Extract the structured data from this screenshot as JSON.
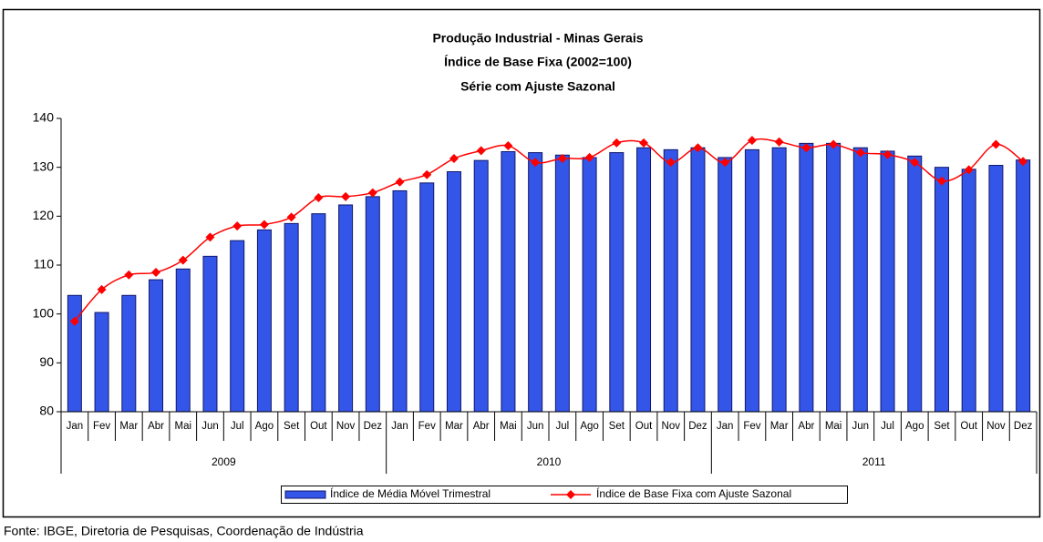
{
  "chart_data": {
    "type": "bar-line",
    "title": "Produção Industrial - Minas Gerais",
    "subtitle": [
      "Índice de Base Fixa (2002=100)",
      "Série com Ajuste Sazonal"
    ],
    "categories": [
      "Jan",
      "Fev",
      "Mar",
      "Abr",
      "Mai",
      "Jun",
      "Jul",
      "Ago",
      "Set",
      "Out",
      "Nov",
      "Dez",
      "Jan",
      "Fev",
      "Mar",
      "Abr",
      "Mai",
      "Jun",
      "Jul",
      "Ago",
      "Set",
      "Out",
      "Nov",
      "Dez",
      "Jan",
      "Fev",
      "Mar",
      "Abr",
      "Mai",
      "Jun",
      "Jul",
      "Ago",
      "Set",
      "Out",
      "Nov",
      "Dez"
    ],
    "groups": [
      "2009",
      "2010",
      "2011"
    ],
    "series": [
      {
        "name": "Índice de Média Móvel Trimestral",
        "kind": "bar",
        "color": "#3355e8",
        "values": [
          103.8,
          100.3,
          103.8,
          107,
          109.2,
          111.8,
          115,
          117.2,
          118.5,
          120.5,
          122.3,
          124,
          125.2,
          126.8,
          129.1,
          131.4,
          133.2,
          133,
          132.5,
          132,
          133,
          134,
          133.6,
          134,
          132,
          133.6,
          134,
          134.9,
          134.9,
          134,
          133.3,
          132.3,
          130,
          129.6,
          130.4,
          131.5
        ]
      },
      {
        "name": "Índice de Base Fixa com Ajuste Sazonal",
        "kind": "line",
        "color": "#ff0000",
        "values": [
          98.5,
          105,
          108,
          108.5,
          111,
          115.7,
          118,
          118.3,
          119.8,
          123.8,
          124,
          124.8,
          127,
          128.5,
          131.8,
          133.4,
          134.4,
          131,
          131.8,
          132,
          135,
          135,
          131,
          134,
          131,
          135.5,
          135.2,
          134,
          134.7,
          133,
          132.6,
          131,
          127.2,
          129.5,
          134.7,
          131.2
        ]
      }
    ],
    "ylim": [
      80,
      140
    ],
    "yticks": [
      80,
      90,
      100,
      110,
      120,
      130,
      140
    ],
    "grid": false,
    "legend": "bottom",
    "source": "Fonte: IBGE, Diretoria de Pesquisas, Coordenação de Indústria"
  }
}
